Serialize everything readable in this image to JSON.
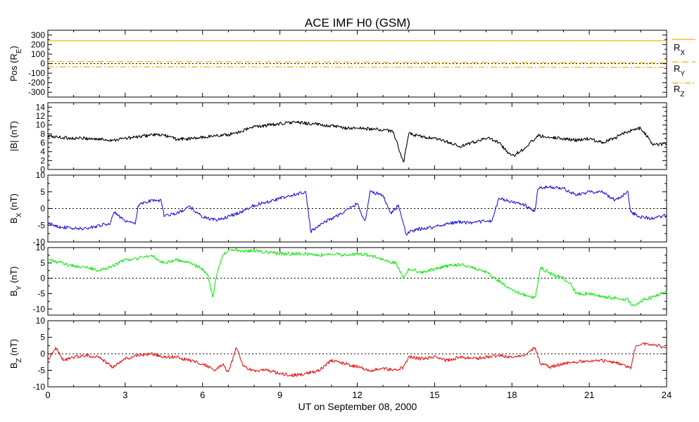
{
  "chart_data": [
    {
      "type": "line",
      "title": "ACE IMF H0 (GSM)",
      "ylabel": "Pos (R",
      "ylabel_sub": "E",
      "ylabel_close": ")",
      "ylim": [
        -350,
        350
      ],
      "yticks": [
        -300,
        -200,
        -100,
        0,
        100,
        200,
        300
      ],
      "zero_line": true,
      "series": [
        {
          "name": "R",
          "sub": "X",
          "color": "#f0b000",
          "dash": "solid",
          "values": [
            240,
            240
          ]
        },
        {
          "name": "R",
          "sub": "Y",
          "color": "#f0b000",
          "dash": "long",
          "values": [
            22,
            10
          ]
        },
        {
          "name": "R",
          "sub": "Z",
          "color": "#f0b000",
          "dash": "dotdash",
          "values": [
            -33,
            -38
          ]
        }
      ]
    },
    {
      "type": "line",
      "ylabel": "|B| (nT)",
      "ylim": [
        0,
        15
      ],
      "yticks": [
        0,
        2,
        4,
        6,
        8,
        10,
        12,
        14
      ],
      "zero_line": false,
      "series": [
        {
          "color": "#000000",
          "x": [
            0,
            0.5,
            1,
            1.5,
            2,
            2.5,
            3,
            3.5,
            4,
            4.5,
            5,
            5.5,
            6,
            6.5,
            7,
            7.5,
            8,
            8.5,
            9,
            9.5,
            10,
            10.5,
            11,
            11.5,
            12,
            12.5,
            13,
            13.4,
            13.8,
            14,
            14.5,
            15,
            15.5,
            16,
            16.5,
            17,
            17.5,
            18,
            18.5,
            19,
            19.5,
            20,
            20.5,
            21,
            21.5,
            22,
            22.5,
            23,
            23.5,
            24
          ],
          "values": [
            7.5,
            7.2,
            7,
            7,
            6.8,
            6.6,
            7,
            7.3,
            7.8,
            7.7,
            6.8,
            6.9,
            7.2,
            7.6,
            7.8,
            8.6,
            9.6,
            9.9,
            10.3,
            10.6,
            10.4,
            10.1,
            9.8,
            9.3,
            9.3,
            9.1,
            8.9,
            8.5,
            1.5,
            8.1,
            7.3,
            6.9,
            6.2,
            5.1,
            6.1,
            7.1,
            6.1,
            2.9,
            4.8,
            7.6,
            7.3,
            6.9,
            6.6,
            6.9,
            6.1,
            7.1,
            8.6,
            9.3,
            5.5,
            5.8
          ]
        }
      ]
    },
    {
      "type": "line",
      "ylabel": "B",
      "ylabel_sub": "X",
      "ylabel_close": " (nT)",
      "ylim": [
        -10,
        10
      ],
      "yticks": [
        -10,
        -5,
        0,
        5,
        10
      ],
      "zero_line": true,
      "series": [
        {
          "color": "#2018e0",
          "x": [
            0,
            0.5,
            1,
            1.5,
            2,
            2.4,
            2.6,
            3,
            3.4,
            3.5,
            4,
            4.4,
            4.5,
            5,
            5.5,
            6,
            6.5,
            7,
            7.5,
            8,
            8.5,
            9,
            9.5,
            10,
            10.2,
            10.5,
            11,
            11.5,
            12,
            12.3,
            12.5,
            13,
            13.3,
            13.6,
            13.9,
            14,
            14.5,
            15,
            15.5,
            16,
            16.5,
            17,
            17.2,
            17.5,
            18,
            18.5,
            18.9,
            19,
            19.5,
            20,
            20.5,
            21,
            21.5,
            22,
            22.5,
            22.6,
            23,
            23.5,
            24
          ],
          "values": [
            -4.5,
            -5.5,
            -6,
            -6,
            -5,
            -4.5,
            -1,
            -4,
            -4.5,
            1,
            2.5,
            2.4,
            -2,
            -1.5,
            0.5,
            -2.5,
            -3.5,
            -2.5,
            -1,
            1,
            2,
            3,
            4,
            5,
            -7,
            -5,
            -3,
            -1,
            1.5,
            -4,
            5,
            4,
            -1.5,
            1,
            -8,
            -7,
            -6,
            -5.5,
            -4.5,
            -4,
            -4.5,
            -3.5,
            -4,
            3,
            2,
            1,
            -1,
            6,
            6.5,
            6,
            4,
            5,
            5,
            2.5,
            5,
            -1,
            -2.5,
            -3,
            -2
          ]
        }
      ]
    },
    {
      "type": "line",
      "ylabel": "B",
      "ylabel_sub": "Y",
      "ylabel_close": " (nT)",
      "ylim": [
        -12,
        10
      ],
      "yticks": [
        -10,
        -5,
        0,
        5,
        10
      ],
      "zero_line": true,
      "series": [
        {
          "color": "#18e818",
          "x": [
            0,
            0.5,
            1,
            1.5,
            2,
            2.5,
            3,
            3.5,
            4,
            4.5,
            5,
            5.5,
            6,
            6.2,
            6.4,
            6.6,
            6.8,
            7.2,
            7.5,
            8,
            8.5,
            9,
            9.5,
            10,
            10.5,
            11,
            11.5,
            12,
            12.5,
            13,
            13.5,
            13.8,
            14,
            14.5,
            15,
            15.5,
            16,
            16.5,
            17,
            17.5,
            18,
            18.5,
            18.9,
            19.1,
            19.5,
            20,
            20.3,
            20.5,
            21,
            21.5,
            22,
            22.5,
            22.7,
            23,
            23.5,
            24
          ],
          "values": [
            6,
            5,
            4,
            3.5,
            2.5,
            4,
            6,
            6.5,
            7.5,
            5,
            6,
            5,
            3,
            1,
            -6,
            3,
            8,
            9.5,
            9,
            9,
            8.5,
            8,
            8,
            8,
            7.5,
            8,
            7.5,
            8,
            7.5,
            6,
            5,
            0,
            3,
            2,
            3,
            4,
            4.5,
            3.5,
            2,
            -1,
            -4,
            -5.5,
            -6.5,
            3.5,
            1.5,
            0,
            -2,
            -5,
            -5,
            -6,
            -6.5,
            -7,
            -9,
            -7.5,
            -6,
            -4.5
          ]
        }
      ]
    },
    {
      "type": "line",
      "ylabel": "B",
      "ylabel_sub": "Z",
      "ylabel_close": " (nT)",
      "ylim": [
        -10,
        10
      ],
      "yticks": [
        -10,
        -5,
        0,
        5,
        10
      ],
      "zero_line": true,
      "series": [
        {
          "color": "#e81818",
          "x": [
            0,
            0.3,
            0.6,
            1,
            1.5,
            2,
            2.5,
            3,
            3.5,
            4,
            4.5,
            5,
            5.5,
            6,
            6.5,
            6.8,
            7,
            7.3,
            7.6,
            8,
            8.5,
            9,
            9.5,
            10,
            10.5,
            11,
            11.5,
            12,
            12.5,
            13,
            13.5,
            13.8,
            14,
            14.5,
            15,
            15.5,
            16,
            16.5,
            17,
            17.5,
            18,
            18.5,
            18.9,
            19.1,
            19.5,
            20,
            20.5,
            21,
            21.5,
            22,
            22.5,
            22.6,
            22.8,
            23,
            23.5,
            24
          ],
          "values": [
            -2,
            2,
            -2,
            -1,
            -0.5,
            -1,
            -4,
            -1.5,
            -0.5,
            0,
            -1,
            -1,
            -2,
            -3,
            -5,
            -3,
            -6,
            2,
            -4,
            -5,
            -5,
            -6,
            -6.5,
            -6,
            -5,
            -2,
            -3,
            -4,
            -5,
            -4.5,
            -5,
            -4,
            -1,
            -1.5,
            -1,
            -2,
            -1,
            -1.5,
            -1,
            -0.5,
            -1,
            -0.5,
            2,
            -3,
            -4,
            -3,
            -2.5,
            -2,
            -2,
            -2.5,
            -4,
            -4.5,
            2.5,
            3,
            3,
            1.5
          ]
        }
      ]
    }
  ],
  "xaxis": {
    "xlim": [
      0,
      24
    ],
    "ticks": [
      0,
      3,
      6,
      9,
      12,
      15,
      18,
      21,
      24
    ],
    "xlabel": "UT on September 08, 2000"
  }
}
